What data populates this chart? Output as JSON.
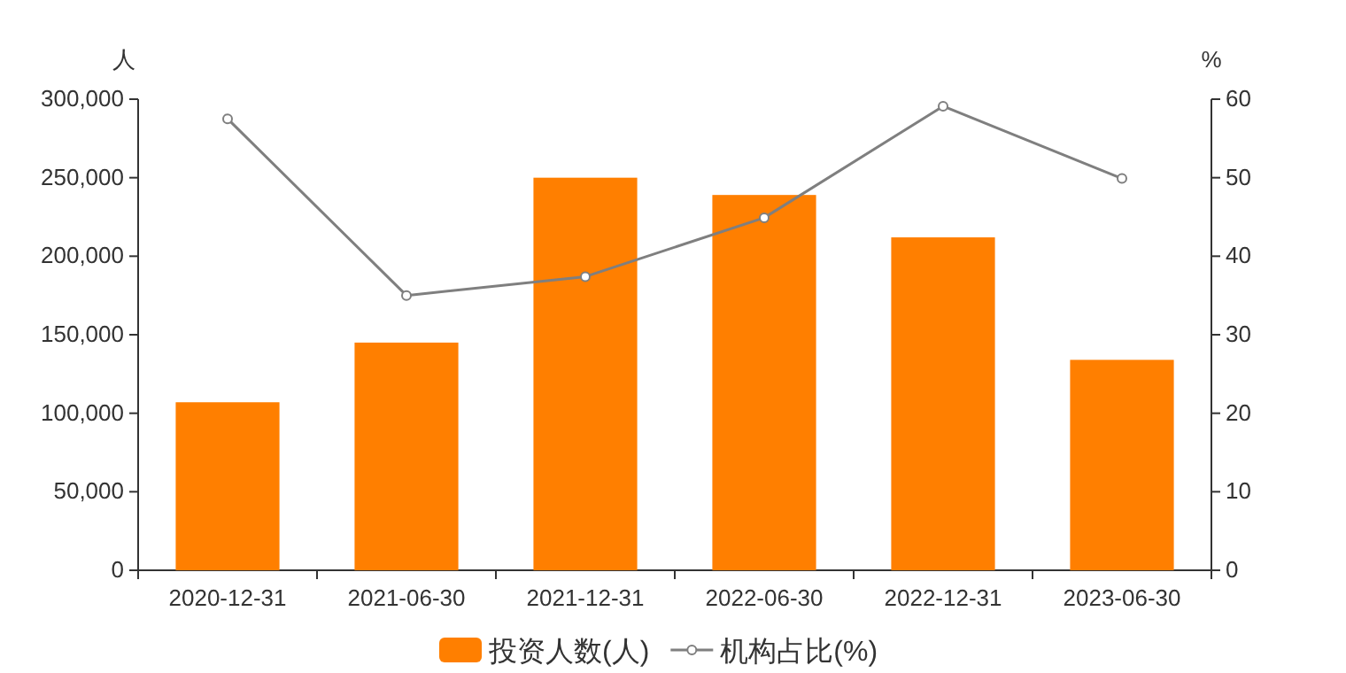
{
  "chart_data": {
    "type": "bar",
    "ylabel": "人",
    "y2label": "%",
    "categories": [
      "2020-12-31",
      "2021-06-30",
      "2021-12-31",
      "2022-06-30",
      "2022-12-31",
      "2023-06-30"
    ],
    "series": [
      {
        "name": "投资人数(人)",
        "color": "#ff7f00",
        "values": [
          107000,
          145000,
          250000,
          239000,
          212000,
          134000
        ]
      },
      {
        "name": "机构占比(%)",
        "type": "line",
        "axis": "y2",
        "color": "#7f7f7f",
        "marker": "circle",
        "values": [
          57.5,
          35.0,
          37.4,
          44.9,
          59.1,
          49.9
        ]
      }
    ],
    "ylim": [
      0,
      300000
    ],
    "yticks": [
      {
        "value": 0,
        "label": "0"
      },
      {
        "value": 50000,
        "label": "50,000"
      },
      {
        "value": 100000,
        "label": "100,000"
      },
      {
        "value": 150000,
        "label": "150,000"
      },
      {
        "value": 200000,
        "label": "200,000"
      },
      {
        "value": 250000,
        "label": "250,000"
      },
      {
        "value": 300000,
        "label": "300,000"
      }
    ],
    "y2lim": [
      0,
      60
    ],
    "y2ticks": [
      0,
      10,
      20,
      30,
      40,
      50,
      60
    ],
    "legend": "bottom"
  }
}
